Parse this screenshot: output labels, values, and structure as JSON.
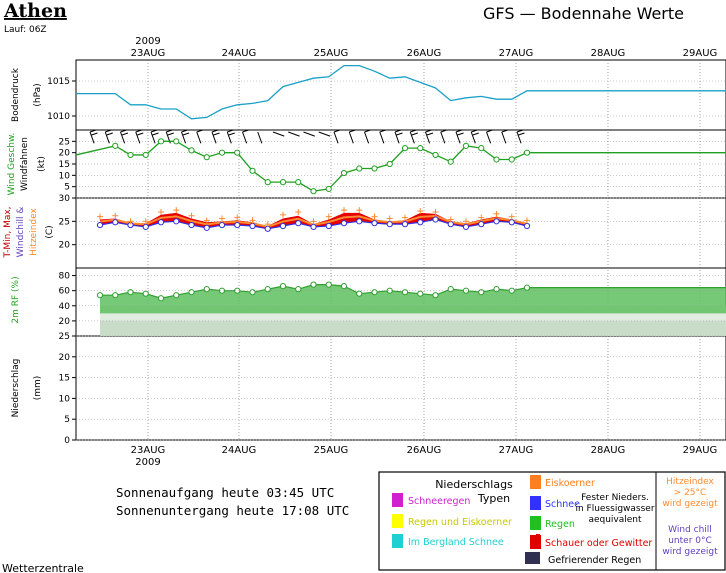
{
  "header": {
    "city": "Athen",
    "run": "Lauf: 06Z",
    "title": "GFS — Bodennahe Werte",
    "year": "2009",
    "footer_source": "Wetterzentrale"
  },
  "dates": [
    "23AUG",
    "24AUG",
    "25AUG",
    "26AUG",
    "27AUG",
    "28AUG",
    "29AUG"
  ],
  "panel_labels": {
    "pressure": [
      "Bodendruck",
      "(hPa)"
    ],
    "wind": [
      "Wind Geschw.",
      "Windfahnen",
      "(kt)"
    ],
    "temp_a": "T-Min, Max,",
    "temp_b": "Windchill &",
    "temp_c": "Hitzeindex",
    "temp_unit": "(C)",
    "rh": [
      "2m RF (%)"
    ],
    "precip": [
      "Niederschlag",
      "(mm)"
    ]
  },
  "sun": {
    "rise": "Sonnenaufgang heute 03:45 UTC",
    "set": "Sonnenuntergang heute 17:08 UTC"
  },
  "legend": {
    "title_a": "Niederschlags",
    "title_b": "Typen",
    "items": [
      {
        "label": "Schneeregen",
        "color": "#d020d0"
      },
      {
        "label": "Regen und Eiskoerner",
        "color": "#ffff00"
      },
      {
        "label": "Im Bergland Schnee",
        "color": "#20d0d0"
      },
      {
        "label": "Eiskoerner",
        "color": "#ff7f20"
      },
      {
        "label": "Schnee",
        "color": "#3030ff"
      },
      {
        "label": "Regen",
        "color": "#20c020"
      },
      {
        "label": "Schauer oder Gewitter",
        "color": "#e00000"
      },
      {
        "label": "Gefrierender Regen",
        "color": "#303050"
      }
    ],
    "solid_a": "Fester Nieders.",
    "solid_b": "in Fluessigwasser",
    "solid_c": "aequivalent",
    "heat_a": "Hitzeindex",
    "heat_b": "> 25°C",
    "heat_c": "wird gezeigt",
    "chill_a": "Wind chill",
    "chill_b": "unter 0°C",
    "chill_c": "wird gezeigt"
  },
  "chart_data": [
    {
      "type": "line",
      "name": "Bodendruck",
      "ylim": [
        1008,
        1018
      ],
      "yticks": [
        1010,
        1015
      ],
      "color": "#1aa0c8",
      "x": [
        0,
        1,
        2,
        3,
        4,
        5,
        6,
        7,
        8,
        9,
        10,
        11,
        12,
        13,
        14,
        15,
        16,
        17,
        18,
        19,
        20,
        21,
        22,
        23,
        24,
        25,
        26,
        27,
        28
      ],
      "values": [
        1013.2,
        1013.2,
        1011.6,
        1011.6,
        1011.0,
        1011.0,
        1009.6,
        1009.8,
        1011.0,
        1011.6,
        1011.8,
        1012.2,
        1014.2,
        1014.8,
        1015.4,
        1015.6,
        1017.2,
        1017.2,
        1016.4,
        1015.4,
        1015.6,
        1014.8,
        1014.0,
        1012.2,
        1012.6,
        1012.8,
        1012.4,
        1012.4,
        1013.6
      ]
    },
    {
      "type": "line",
      "name": "Wind Geschw.",
      "ylim": [
        0,
        30
      ],
      "yticks": [
        5,
        10,
        15,
        20,
        25
      ],
      "color": "#20a020",
      "x": [
        0,
        1,
        2,
        3,
        4,
        5,
        6,
        7,
        8,
        9,
        10,
        11,
        12,
        13,
        14,
        15,
        16,
        17,
        18,
        19,
        20,
        21,
        22,
        23,
        24,
        25,
        26,
        27,
        28
      ],
      "values": [
        19,
        23,
        19,
        19,
        25,
        25,
        21,
        18,
        20,
        20,
        12,
        7,
        7,
        7,
        3,
        4,
        11,
        13,
        13,
        15,
        22,
        22,
        19,
        16,
        23,
        22,
        17,
        17,
        20
      ]
    },
    {
      "type": "area",
      "name": "Temperatur",
      "ylim": [
        15,
        30
      ],
      "yticks": [
        20,
        25,
        30
      ],
      "x": [
        0,
        1,
        2,
        3,
        4,
        5,
        6,
        7,
        8,
        9,
        10,
        11,
        12,
        13,
        14,
        15,
        16,
        17,
        18,
        19,
        20,
        21,
        22,
        23,
        24,
        25,
        26,
        27,
        28
      ],
      "tmin": [
        24.2,
        24.8,
        24.2,
        23.8,
        24.8,
        25.0,
        24.2,
        23.6,
        24.2,
        24.2,
        24.0,
        23.4,
        24.0,
        24.6,
        23.8,
        24.0,
        24.6,
        25.0,
        24.6,
        24.4,
        24.4,
        24.8,
        25.4,
        24.4,
        23.8,
        24.4,
        25.0,
        24.8,
        24.0
      ],
      "tmax": [
        25.4,
        25.6,
        24.6,
        24.6,
        26.4,
        26.8,
        25.6,
        24.8,
        25.0,
        25.2,
        24.8,
        24.0,
        25.6,
        26.2,
        24.4,
        25.4,
        26.8,
        26.8,
        25.4,
        25.0,
        25.2,
        26.8,
        26.6,
        25.0,
        24.6,
        25.4,
        26.0,
        25.4,
        24.6
      ],
      "heat": [
        26.0,
        26.2,
        25.0,
        25.0,
        27.0,
        27.4,
        26.2,
        25.2,
        25.6,
        25.8,
        25.2,
        24.4,
        26.4,
        27.0,
        25.0,
        26.0,
        27.4,
        27.4,
        26.0,
        25.6,
        25.8,
        27.2,
        27.0,
        25.4,
        25.0,
        25.8,
        26.6,
        26.0,
        25.2
      ]
    },
    {
      "type": "area",
      "name": "2m RF",
      "ylim": [
        0,
        90
      ],
      "yticks": [
        20,
        40,
        60,
        80
      ],
      "x": [
        0,
        1,
        2,
        3,
        4,
        5,
        6,
        7,
        8,
        9,
        10,
        11,
        12,
        13,
        14,
        15,
        16,
        17,
        18,
        19,
        20,
        21,
        22,
        23,
        24,
        25,
        26,
        27,
        28
      ],
      "values": [
        54,
        54,
        58,
        56,
        50,
        54,
        58,
        62,
        60,
        60,
        58,
        62,
        66,
        62,
        68,
        68,
        66,
        56,
        58,
        60,
        58,
        56,
        54,
        62,
        60,
        58,
        62,
        60,
        64
      ]
    },
    {
      "type": "bar",
      "name": "Niederschlag",
      "ylim": [
        0,
        25
      ],
      "yticks": [
        0,
        5,
        10,
        15,
        20,
        25
      ],
      "values": []
    }
  ]
}
